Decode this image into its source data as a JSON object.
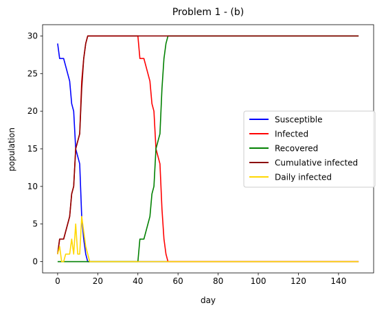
{
  "chart_data": {
    "type": "line",
    "title": "Problem 1 - (b)",
    "xlabel": "day",
    "ylabel": "population",
    "xlim": [
      -7.5,
      157.5
    ],
    "ylim": [
      -1.5,
      31.5
    ],
    "xticks": [
      0,
      20,
      40,
      60,
      80,
      100,
      120,
      140
    ],
    "yticks": [
      0,
      5,
      10,
      15,
      20,
      25,
      30
    ],
    "grid": false,
    "legend_position": "center-right",
    "series": [
      {
        "name": "Susceptible",
        "color": "#0000ff",
        "x": [
          0,
          1,
          2,
          3,
          4,
          5,
          6,
          7,
          8,
          9,
          10,
          11,
          12,
          13,
          14,
          15,
          16,
          150
        ],
        "y": [
          29,
          27,
          27,
          27,
          26,
          25,
          24,
          21,
          20,
          15,
          14,
          13,
          6,
          3,
          1,
          0,
          0,
          0
        ]
      },
      {
        "name": "Infected",
        "color": "#ff0000",
        "x": [
          0,
          1,
          2,
          3,
          4,
          5,
          6,
          7,
          8,
          9,
          10,
          11,
          12,
          13,
          14,
          15,
          16,
          40,
          41,
          42,
          43,
          44,
          45,
          46,
          47,
          48,
          49,
          50,
          51,
          52,
          53,
          54,
          55,
          150
        ],
        "y": [
          1,
          3,
          3,
          3,
          4,
          5,
          6,
          9,
          10,
          15,
          16,
          17,
          24,
          27,
          29,
          30,
          30,
          30,
          27,
          27,
          27,
          26,
          25,
          24,
          21,
          20,
          15,
          14,
          13,
          7,
          3,
          1,
          0,
          0
        ]
      },
      {
        "name": "Recovered",
        "color": "#008000",
        "x": [
          0,
          39,
          40,
          41,
          42,
          43,
          44,
          45,
          46,
          47,
          48,
          49,
          50,
          51,
          52,
          53,
          54,
          55,
          150
        ],
        "y": [
          0,
          0,
          0,
          3,
          3,
          3,
          4,
          5,
          6,
          9,
          10,
          15,
          16,
          17,
          23,
          27,
          29,
          30,
          30
        ]
      },
      {
        "name": "Cumulative infected",
        "color": "#8b0000",
        "x": [
          0,
          1,
          2,
          3,
          4,
          5,
          6,
          7,
          8,
          9,
          10,
          11,
          12,
          13,
          14,
          15,
          16,
          150
        ],
        "y": [
          1,
          3,
          3,
          3,
          4,
          5,
          6,
          9,
          10,
          15,
          16,
          17,
          23,
          27,
          29,
          30,
          30,
          30
        ]
      },
      {
        "name": "Daily infected",
        "color": "#ffd700",
        "x": [
          0,
          1,
          2,
          3,
          4,
          5,
          6,
          7,
          8,
          9,
          10,
          11,
          12,
          13,
          14,
          15,
          16,
          150
        ],
        "y": [
          1,
          2,
          0,
          0,
          1,
          1,
          1,
          3,
          1,
          5,
          1,
          1,
          6,
          4,
          2,
          1,
          0,
          0
        ]
      }
    ]
  }
}
